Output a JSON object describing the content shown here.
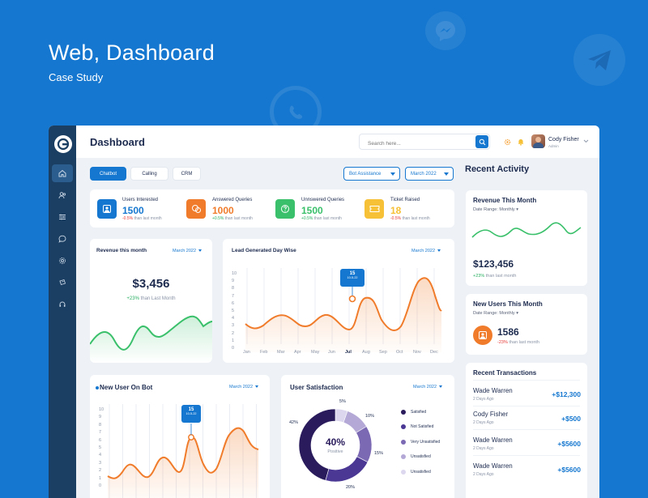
{
  "hero": {
    "title": "Web, Dashboard",
    "subtitle": "Case Study"
  },
  "header": {
    "title": "Dashboard",
    "search_placeholder": "Search here...",
    "user_name": "Cody Fisher",
    "user_role": "Admin"
  },
  "tabs": [
    {
      "label": "Chatbot",
      "active": true
    },
    {
      "label": "Calling",
      "active": false
    },
    {
      "label": "CRM",
      "active": false
    }
  ],
  "filters": {
    "bot": "Bot Assistance",
    "month": "March 2022"
  },
  "stats": [
    {
      "label": "Users Interested",
      "value": "1500",
      "delta": "-0.5%",
      "sub": "than last month",
      "color": "#1577cf"
    },
    {
      "label": "Answered Queries",
      "value": "1000",
      "delta": "+0.5%",
      "sub": "than last month",
      "color": "#f07c2b"
    },
    {
      "label": "Unnswered Queries",
      "value": "1500",
      "delta": "+0.5%",
      "sub": "than last month",
      "color": "#3ac06a"
    },
    {
      "label": "Ticket Raised",
      "value": "18",
      "delta": "-0.5%",
      "sub": "than last month",
      "color": "#f6c137"
    }
  ],
  "revenue_card": {
    "title": "Revenue this month",
    "period": "March 2022",
    "value": "$3,456",
    "delta": "+23%",
    "sub": "than Last Month"
  },
  "leads_card": {
    "title": "Lead Generated Day Wise",
    "period": "March 2022",
    "tooltip_day": "15",
    "tooltip_date": "10-5-22",
    "y_ticks": [
      "10",
      "9",
      "8",
      "7",
      "6",
      "5",
      "4",
      "3",
      "2",
      "1",
      "0"
    ],
    "months": [
      "Jan",
      "Feb",
      "Mar",
      "Apr",
      "May",
      "Jun",
      "Jul",
      "Aug",
      "Sep",
      "Oct",
      "Nov",
      "Dec"
    ]
  },
  "new_users_card": {
    "title": "New User On Bot",
    "period": "March 2022",
    "tooltip_day": "15",
    "tooltip_date": "10-5-22",
    "y_ticks": [
      "10",
      "9",
      "8",
      "7",
      "6",
      "5",
      "4",
      "3",
      "2",
      "1",
      "0"
    ]
  },
  "satisfaction_card": {
    "title": "User Satisfaction",
    "period": "March 2022",
    "center_value": "40%",
    "center_label": "Positive",
    "segments": [
      {
        "label": "Satisfied",
        "pct": "42%",
        "value": 42,
        "color": "#2a1c5c"
      },
      {
        "label": "Not Satisfied",
        "pct": "20%",
        "value": 20,
        "color": "#4a3894"
      },
      {
        "label": "Very Unsatisfied",
        "pct": "15%",
        "value": 15,
        "color": "#7b69b4"
      },
      {
        "label": "Unsatisfied",
        "pct": "10%",
        "value": 10,
        "color": "#b3a8d6"
      },
      {
        "label": "",
        "pct": "5%",
        "value": 5,
        "color": "#dcd7ee"
      }
    ]
  },
  "recent_activity": {
    "title": "Recent Activity",
    "revenue": {
      "title": "Revenue This Month",
      "range": "Date Range: Monthly",
      "value": "$123,456",
      "delta": "+23%",
      "sub": "than last month"
    },
    "new_users": {
      "title": "New Users This Month",
      "range": "Date Range: Monthly",
      "value": "1586",
      "delta": "-23%",
      "sub": "than last month"
    },
    "transactions_title": "Recent Transactions",
    "transactions": [
      {
        "name": "Wade Warren",
        "date": "2 Days Ago",
        "amount": "+$12,300"
      },
      {
        "name": "Cody Fisher",
        "date": "2 Days Ago",
        "amount": "+$500"
      },
      {
        "name": "Wade Warren",
        "date": "2 Days Ago",
        "amount": "+$5600"
      },
      {
        "name": "Wade Warren",
        "date": "2 Days Ago",
        "amount": "+$5600"
      }
    ]
  },
  "colors": {
    "brand": "#1577cf",
    "sidebar": "#1b3f62",
    "orange": "#f07c2b",
    "green": "#3ac06a",
    "purple": "#2a1c5c"
  }
}
